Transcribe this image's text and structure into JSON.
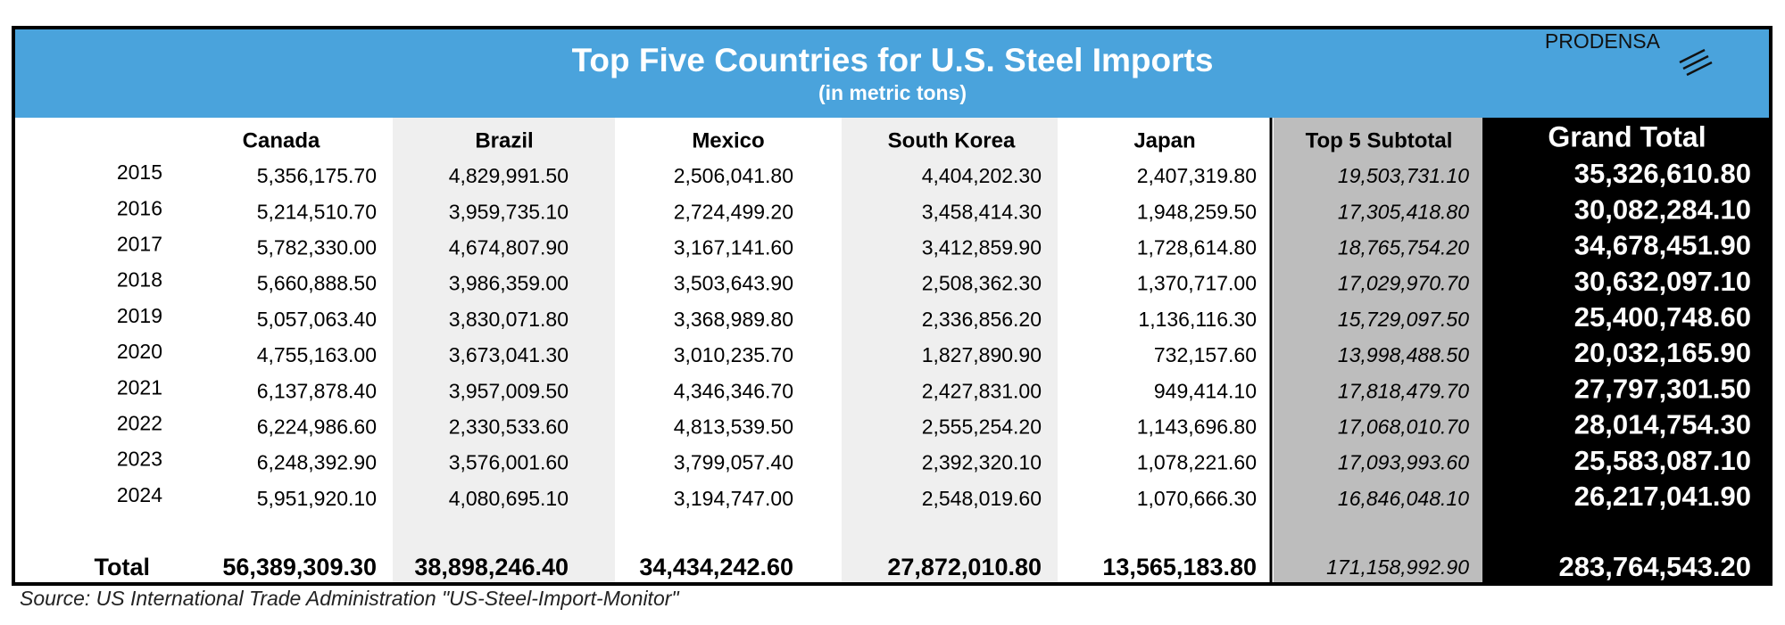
{
  "header": {
    "title": "Top Five Countries for U.S. Steel Imports",
    "subtitle": "(in metric tons)",
    "logo": "PRODENSA"
  },
  "table": {
    "columns": [
      "Canada",
      "Brazil",
      "Mexico",
      "South Korea",
      "Japan",
      "Top 5 Subtotal",
      "Grand Total"
    ],
    "rows": [
      {
        "label": "2015",
        "cells": [
          "5,356,175.70",
          "4,829,991.50",
          "2,506,041.80",
          "4,404,202.30",
          "2,407,319.80",
          "19,503,731.10",
          "35,326,610.80"
        ]
      },
      {
        "label": "2016",
        "cells": [
          "5,214,510.70",
          "3,959,735.10",
          "2,724,499.20",
          "3,458,414.30",
          "1,948,259.50",
          "17,305,418.80",
          "30,082,284.10"
        ]
      },
      {
        "label": "2017",
        "cells": [
          "5,782,330.00",
          "4,674,807.90",
          "3,167,141.60",
          "3,412,859.90",
          "1,728,614.80",
          "18,765,754.20",
          "34,678,451.90"
        ]
      },
      {
        "label": "2018",
        "cells": [
          "5,660,888.50",
          "3,986,359.00",
          "3,503,643.90",
          "2,508,362.30",
          "1,370,717.00",
          "17,029,970.70",
          "30,632,097.10"
        ]
      },
      {
        "label": "2019",
        "cells": [
          "5,057,063.40",
          "3,830,071.80",
          "3,368,989.80",
          "2,336,856.20",
          "1,136,116.30",
          "15,729,097.50",
          "25,400,748.60"
        ]
      },
      {
        "label": "2020",
        "cells": [
          "4,755,163.00",
          "3,673,041.30",
          "3,010,235.70",
          "1,827,890.90",
          "732,157.60",
          "13,998,488.50",
          "20,032,165.90"
        ]
      },
      {
        "label": "2021",
        "cells": [
          "6,137,878.40",
          "3,957,009.50",
          "4,346,346.70",
          "2,427,831.00",
          "949,414.10",
          "17,818,479.70",
          "27,797,301.50"
        ]
      },
      {
        "label": "2022",
        "cells": [
          "6,224,986.60",
          "2,330,533.60",
          "4,813,539.50",
          "2,555,254.20",
          "1,143,696.80",
          "17,068,010.70",
          "28,014,754.30"
        ]
      },
      {
        "label": "2023",
        "cells": [
          "6,248,392.90",
          "3,576,001.60",
          "3,799,057.40",
          "2,392,320.10",
          "1,078,221.60",
          "17,093,993.60",
          "25,583,087.10"
        ]
      },
      {
        "label": "2024",
        "cells": [
          "5,951,920.10",
          "4,080,695.10",
          "3,194,747.00",
          "2,548,019.60",
          "1,070,666.30",
          "16,846,048.10",
          "26,217,041.90"
        ]
      }
    ],
    "total": {
      "label": "Total",
      "cells": [
        "56,389,309.30",
        "38,898,246.40",
        "34,434,242.60",
        "27,872,010.80",
        "13,565,183.80",
        "171,158,992.90",
        "283,764,543.20"
      ]
    }
  },
  "source": "Source: US International Trade Administration \"US-Steel-Import-Monitor\""
}
